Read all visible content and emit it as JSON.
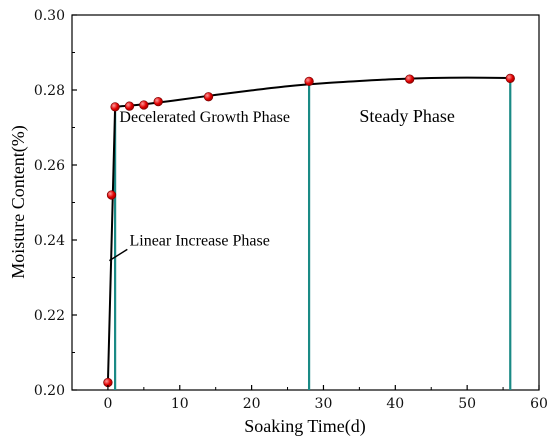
{
  "chart_data": {
    "type": "scatter",
    "title": "",
    "xlabel": "Soaking Time(d)",
    "ylabel": "Moisture Content(%)",
    "xlim": [
      -5,
      60
    ],
    "ylim": [
      0.2,
      0.3
    ],
    "x_ticks": [
      0,
      10,
      20,
      30,
      40,
      50,
      60
    ],
    "x_tick_labels": [
      "0",
      "10",
      "20",
      "30",
      "40",
      "50",
      "60"
    ],
    "y_ticks": [
      0.2,
      0.22,
      0.24,
      0.26,
      0.28,
      0.3
    ],
    "y_tick_labels": [
      "0.20",
      "0.22",
      "0.24",
      "0.26",
      "0.28",
      "0.30"
    ],
    "grid": false,
    "legend": "none",
    "series": [
      {
        "points": [
          {
            "x": 0,
            "y": 0.202
          },
          {
            "x": 0.5,
            "y": 0.252
          },
          {
            "x": 1,
            "y": 0.2755
          },
          {
            "x": 3,
            "y": 0.2757
          },
          {
            "x": 5,
            "y": 0.276
          },
          {
            "x": 7,
            "y": 0.2769
          },
          {
            "x": 14,
            "y": 0.2782
          },
          {
            "x": 28,
            "y": 0.2823
          },
          {
            "x": 42,
            "y": 0.2829
          },
          {
            "x": 56,
            "y": 0.2831
          }
        ],
        "color": "#e00000"
      }
    ],
    "fit_curve": [
      {
        "x": 0,
        "y": 0.202
      },
      {
        "x": 1,
        "y": 0.2755
      },
      {
        "x": 2,
        "y": 0.2757
      },
      {
        "x": 5,
        "y": 0.2762
      },
      {
        "x": 10,
        "y": 0.2774
      },
      {
        "x": 15,
        "y": 0.2787
      },
      {
        "x": 20,
        "y": 0.2799
      },
      {
        "x": 25,
        "y": 0.281
      },
      {
        "x": 30,
        "y": 0.2818
      },
      {
        "x": 35,
        "y": 0.2824
      },
      {
        "x": 40,
        "y": 0.2829
      },
      {
        "x": 45,
        "y": 0.2832
      },
      {
        "x": 50,
        "y": 0.2833
      },
      {
        "x": 56,
        "y": 0.2832
      }
    ],
    "phase_dividers": [
      1,
      28,
      56
    ],
    "annotations": [
      {
        "text": "Decelerated Growth Phase",
        "x": 1.6,
        "y": 0.2715,
        "size": 16
      },
      {
        "text": "Steady Phase",
        "x": 35,
        "y": 0.2715,
        "size": 18
      },
      {
        "text": "Linear Increase Phase",
        "x": 3,
        "y": 0.2385,
        "size": 16
      }
    ],
    "pointer": {
      "from": {
        "x": 0.2,
        "y": 0.2345
      },
      "to": {
        "x": 2.7,
        "y": 0.2375
      }
    },
    "colors": {
      "divider": "#1a8a85",
      "curve": "#000000",
      "axis": "#000000"
    }
  }
}
